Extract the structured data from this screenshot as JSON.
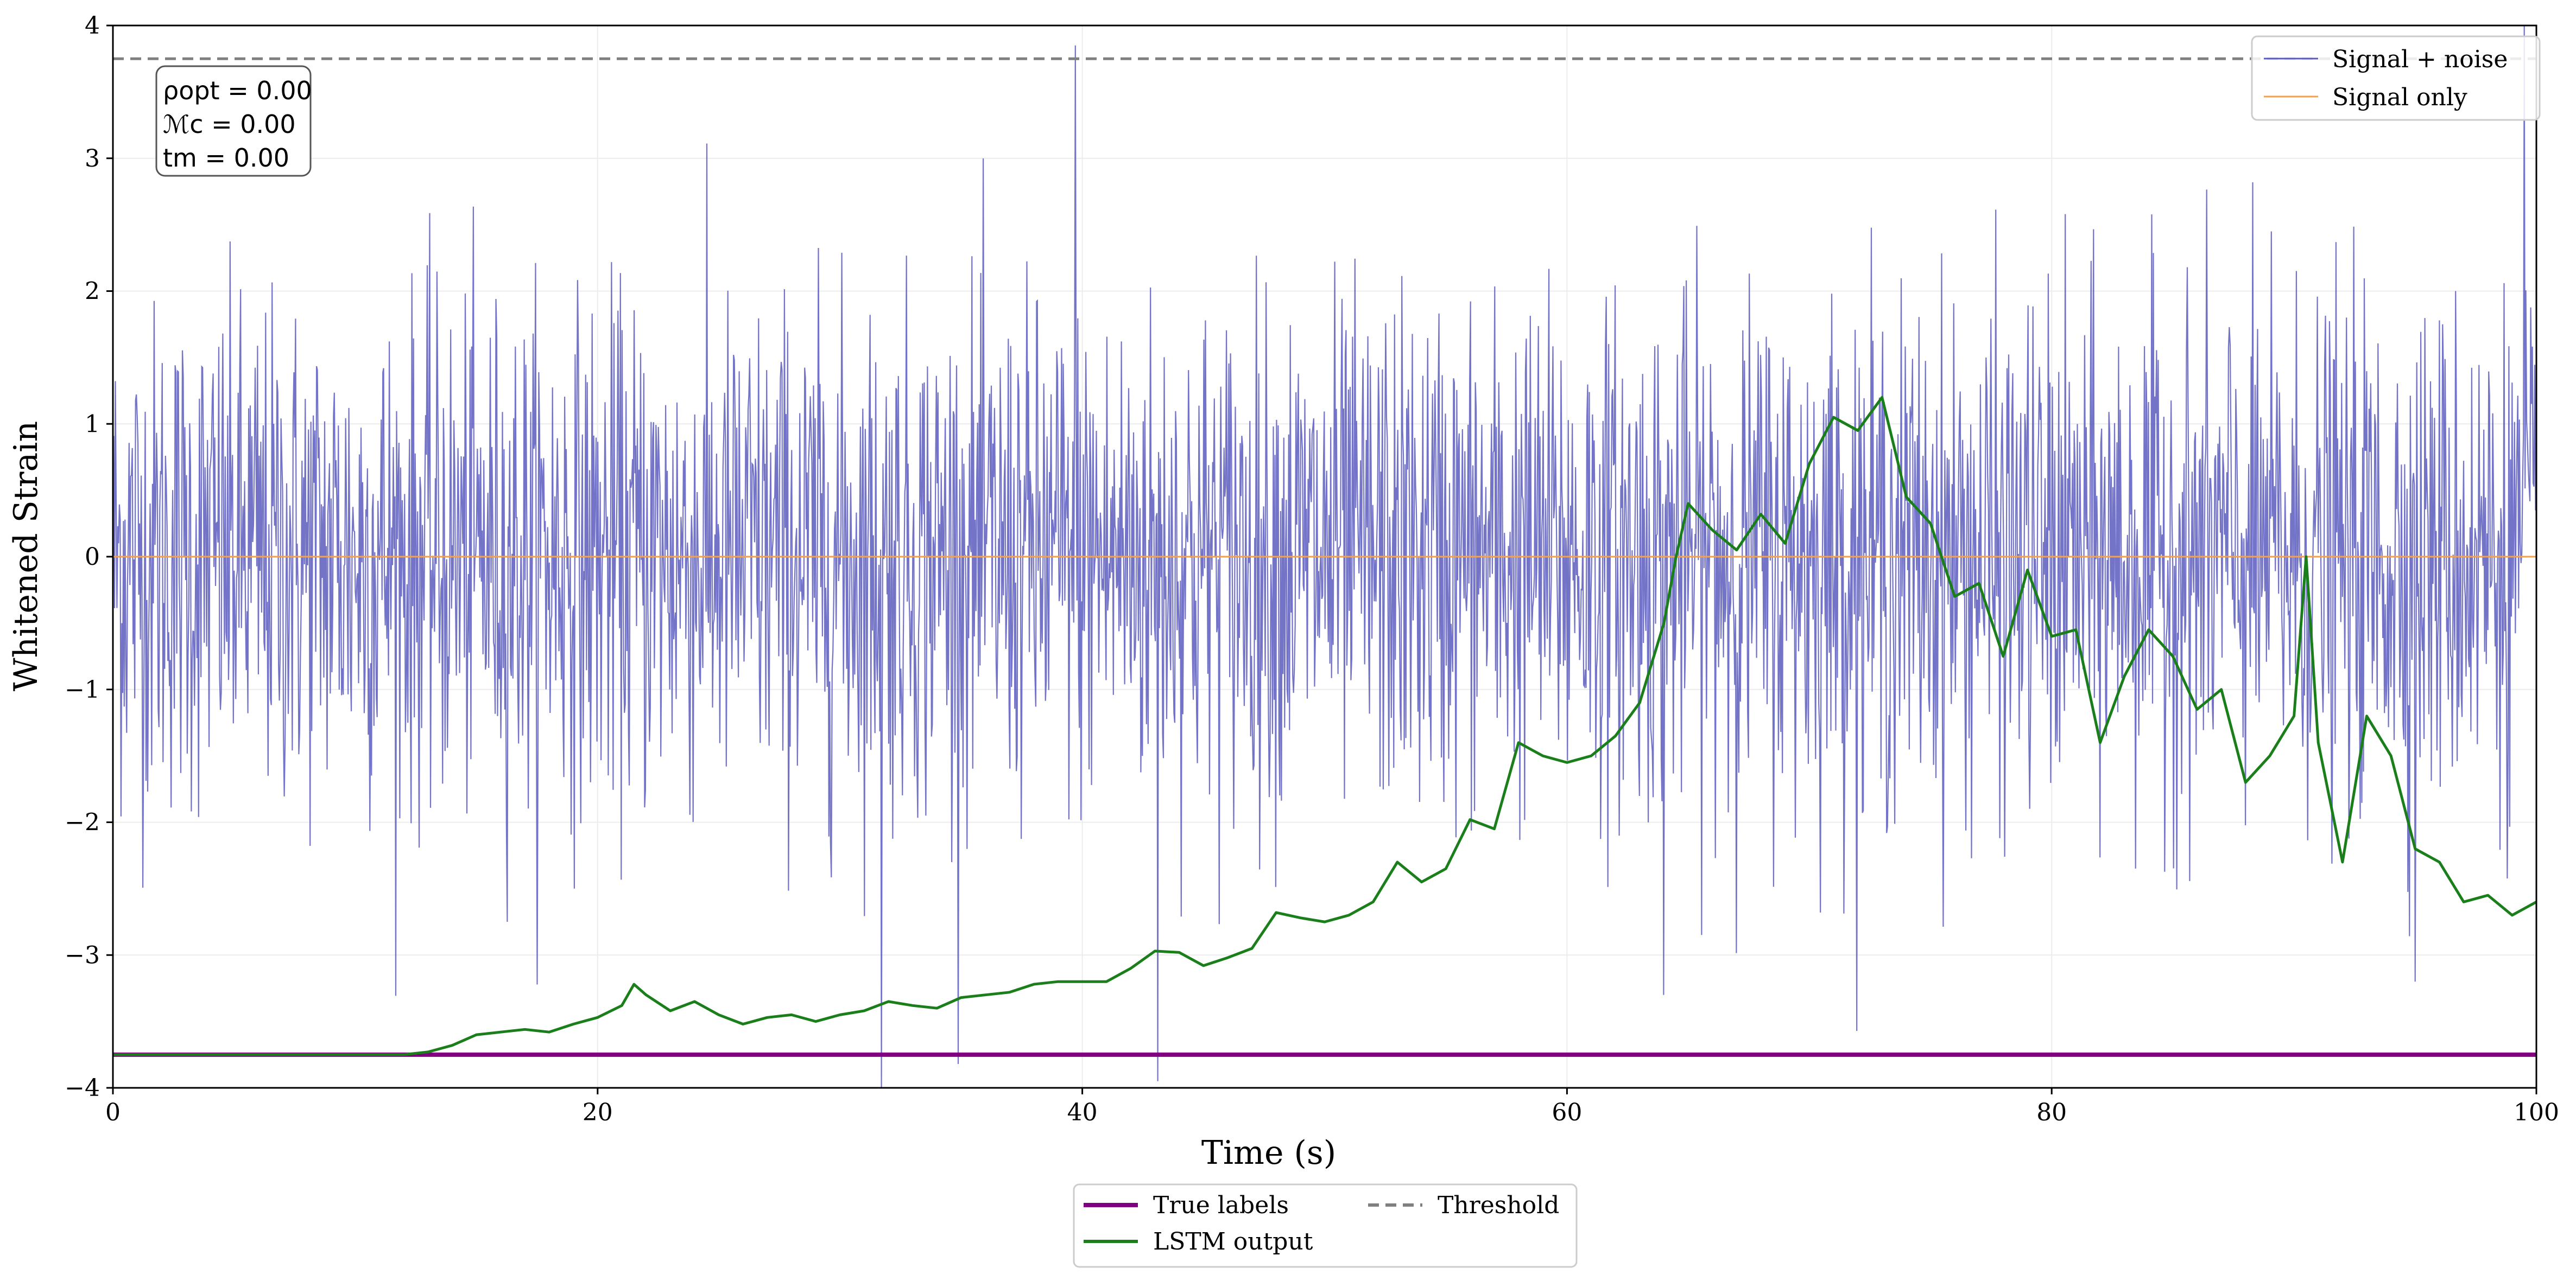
{
  "chart_data": {
    "type": "line",
    "xlabel": "Time (s)",
    "ylabel": "Whitened Strain",
    "xlim": [
      0,
      100
    ],
    "ylim": [
      -4,
      4
    ],
    "x_ticks": [
      0,
      20,
      40,
      60,
      80,
      100
    ],
    "y_ticks": [
      -4,
      -3,
      -2,
      -1,
      0,
      1,
      2,
      3,
      4
    ],
    "grid": true,
    "threshold": 3.75,
    "true_label_level": -3.75,
    "annotation": [
      "ρopt = 0.00",
      "ℳc = 0.00",
      "tm = 0.00"
    ],
    "legend_top_right": [
      {
        "name": "Signal + noise",
        "color": "#5b5bbd"
      },
      {
        "name": "Signal only",
        "color": "#f5a04a"
      }
    ],
    "legend_bottom": [
      {
        "name": "True labels",
        "color": "#800080"
      },
      {
        "name": "Threshold",
        "color": "#808080"
      },
      {
        "name": "LSTM output",
        "color": "#1a7f1a"
      }
    ],
    "signal_only_value": 0,
    "noise_spikes": [
      {
        "x": 39.7,
        "y": 3.85
      },
      {
        "x": 99.5,
        "y": 4.0
      },
      {
        "x": 31.7,
        "y": -4.0
      },
      {
        "x": 43.1,
        "y": -3.95
      },
      {
        "x": 64.0,
        "y": -3.3
      },
      {
        "x": 95.0,
        "y": -3.2
      }
    ],
    "series": [
      {
        "name": "LSTM output",
        "x": [
          0,
          5,
          10,
          12,
          13,
          14,
          15,
          16,
          17,
          18,
          19,
          20,
          21,
          21.5,
          22,
          23,
          24,
          25,
          26,
          27,
          28,
          29,
          30,
          31,
          32,
          33,
          34,
          35,
          36,
          37,
          38,
          39,
          40,
          41,
          42,
          43,
          44,
          45,
          46,
          47,
          48,
          49,
          50,
          51,
          52,
          53,
          54,
          55,
          56,
          57,
          58,
          59,
          60,
          61,
          62,
          63,
          64,
          64.5,
          65,
          66,
          67,
          68,
          69,
          70,
          71,
          72,
          73,
          74,
          75,
          76,
          77,
          78,
          79,
          80,
          81,
          82,
          83,
          84,
          85,
          86,
          87,
          88,
          89,
          90,
          90.5,
          91,
          92,
          93,
          94,
          95,
          96,
          97,
          98,
          99,
          100
        ],
        "y": [
          -3.75,
          -3.75,
          -3.75,
          -3.75,
          -3.73,
          -3.68,
          -3.6,
          -3.58,
          -3.56,
          -3.58,
          -3.52,
          -3.47,
          -3.38,
          -3.22,
          -3.3,
          -3.42,
          -3.35,
          -3.45,
          -3.52,
          -3.47,
          -3.45,
          -3.5,
          -3.45,
          -3.42,
          -3.35,
          -3.38,
          -3.4,
          -3.32,
          -3.3,
          -3.28,
          -3.22,
          -3.2,
          -3.2,
          -3.2,
          -3.1,
          -2.97,
          -2.98,
          -3.08,
          -3.02,
          -2.95,
          -2.68,
          -2.72,
          -2.75,
          -2.7,
          -2.6,
          -2.3,
          -2.45,
          -2.35,
          -1.98,
          -2.05,
          -1.4,
          -1.5,
          -1.55,
          -1.5,
          -1.35,
          -1.1,
          -0.5,
          0.0,
          0.4,
          0.2,
          0.05,
          0.32,
          0.1,
          0.7,
          1.05,
          0.95,
          1.2,
          0.45,
          0.25,
          -0.3,
          -0.2,
          -0.75,
          -0.1,
          -0.6,
          -0.55,
          -1.4,
          -0.9,
          -0.55,
          -0.75,
          -1.15,
          -1.0,
          -1.7,
          -1.5,
          -1.2,
          0.0,
          -1.4,
          -2.3,
          -1.2,
          -1.5,
          -2.2,
          -2.3,
          -2.6,
          -2.55,
          -2.7,
          -2.6
        ]
      }
    ]
  }
}
